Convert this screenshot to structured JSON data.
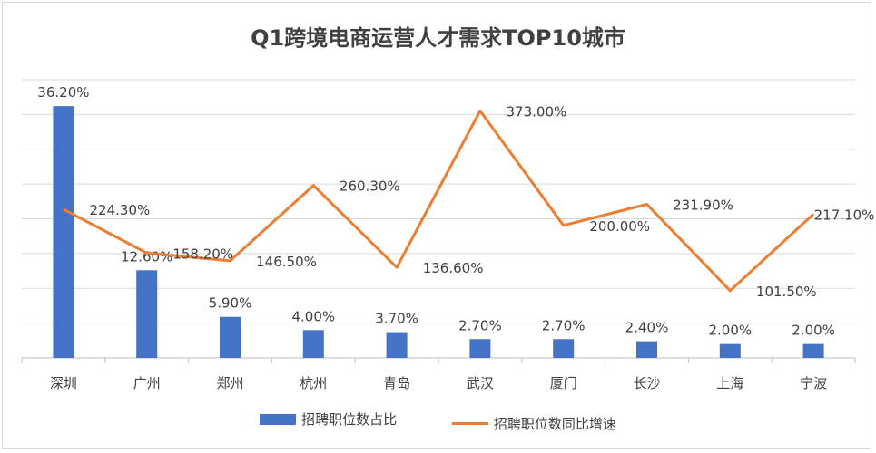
{
  "colors": {
    "bar": "#4472c4",
    "line": "#ed7d31"
  },
  "chart_data": {
    "type": "bar",
    "title": "Q1跨境电商运营人才需求TOP10城市",
    "categories": [
      "深圳",
      "广州",
      "郑州",
      "杭州",
      "青岛",
      "武汉",
      "厦门",
      "长沙",
      "上海",
      "宁波"
    ],
    "bar_series": {
      "name": "招聘职位数占比",
      "values": [
        36.2,
        12.6,
        5.9,
        4.0,
        3.7,
        2.7,
        2.7,
        2.4,
        2.0,
        2.0
      ],
      "labels": [
        "36.20%",
        "12.60%",
        "5.90%",
        "4.00%",
        "3.70%",
        "2.70%",
        "2.70%",
        "2.40%",
        "2.00%",
        "2.00%"
      ]
    },
    "line_series": {
      "name": "招聘职位数同比增速",
      "values": [
        224.3,
        158.2,
        146.5,
        260.3,
        136.6,
        373.0,
        200.0,
        231.9,
        101.5,
        217.1
      ],
      "labels": [
        "224.30%",
        "158.20%",
        "146.50%",
        "260.30%",
        "136.60%",
        "373.00%",
        "200.00%",
        "231.90%",
        "101.50%",
        "217.10%"
      ]
    },
    "grid": true,
    "legend_position": "bottom"
  }
}
